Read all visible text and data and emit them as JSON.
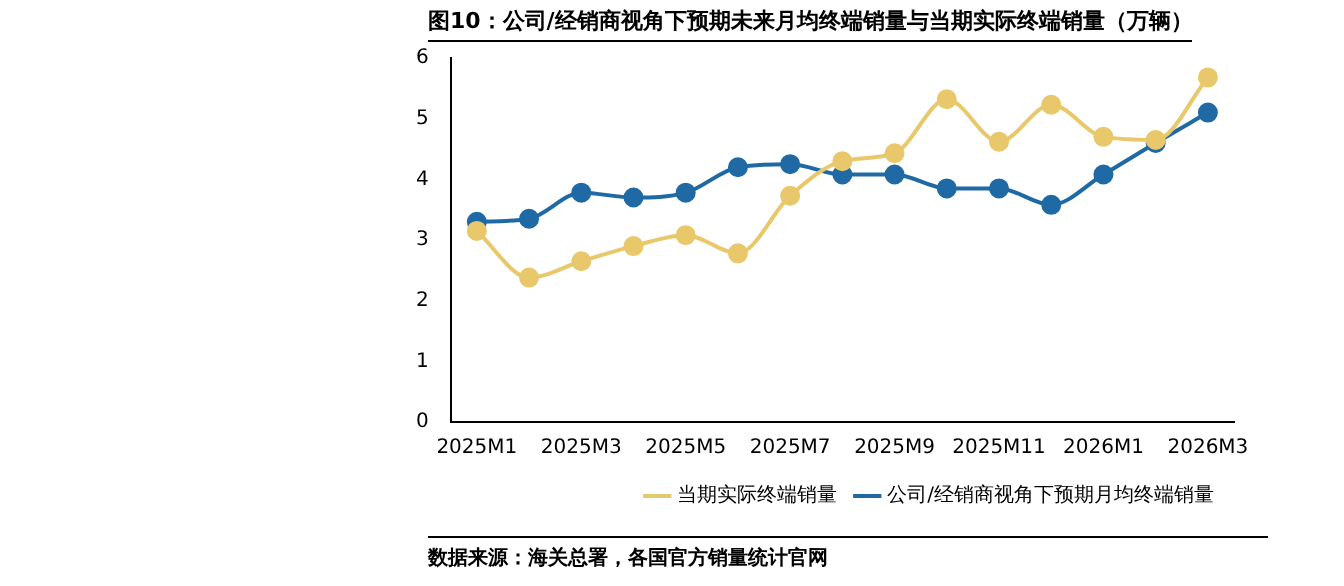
{
  "chart_data": {
    "type": "line",
    "title": "图10：公司/经销商视角下预期未来月均终端销量与当期实际终端销量（万辆）",
    "categories": [
      "2025M1",
      null,
      "2025M3",
      null,
      "2025M5",
      null,
      "2025M7",
      null,
      "2025M9",
      null,
      "2025M11",
      null,
      "2026M1",
      null,
      "2026M3"
    ],
    "series": [
      {
        "name": "公司/经销商视角下预期月均终端销量",
        "color": "#1f6aa5",
        "values": [
          3.3,
          3.35,
          3.78,
          3.7,
          3.78,
          4.2,
          4.25,
          4.08,
          4.08,
          3.85,
          3.85,
          3.58,
          4.08,
          4.6,
          5.1
        ]
      },
      {
        "name": "当期实际终端销量",
        "color": "#e8c86a",
        "values": [
          3.15,
          2.38,
          2.65,
          2.9,
          3.08,
          2.78,
          3.73,
          4.3,
          4.43,
          5.32,
          4.62,
          5.23,
          4.7,
          4.65,
          5.68
        ]
      }
    ],
    "ylim": [
      0,
      6
    ],
    "yticks": [
      0,
      1,
      2,
      3,
      4,
      5,
      6
    ],
    "grid": false,
    "legend": "bottom",
    "marker": "circle",
    "line_style": "solid",
    "annotations": [
      "数据来源：海关总署，各国官方销量统计官网"
    ]
  }
}
